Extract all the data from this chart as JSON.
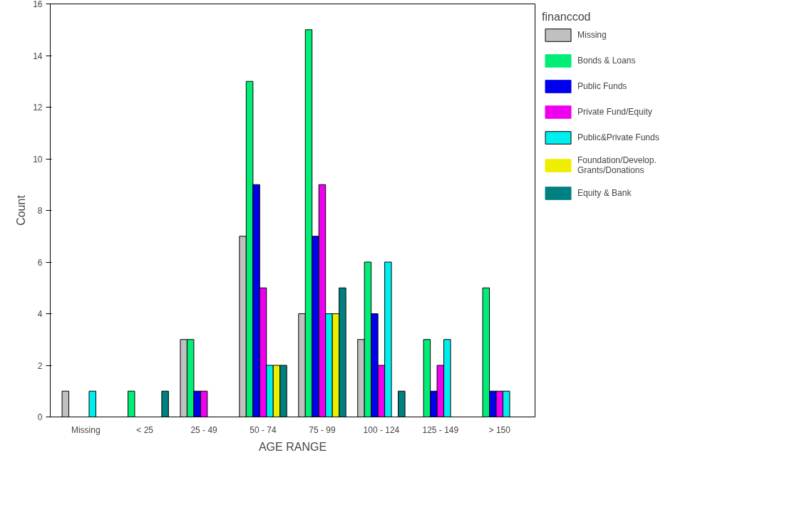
{
  "chart_data": {
    "type": "bar",
    "xlabel": "AGE RANGE",
    "ylabel": "Count",
    "legend_title": "financcod",
    "categories": [
      "Missing",
      "< 25",
      "25 - 49",
      "50 - 74",
      "75 - 99",
      "100 - 124",
      "125 - 149",
      "> 150"
    ],
    "series": [
      {
        "name": "Missing",
        "color": "#c0c0c0",
        "values": [
          1,
          0,
          3,
          7,
          4,
          3,
          0,
          0
        ]
      },
      {
        "name": "Bonds & Loans",
        "color": "#00ee76",
        "values": [
          0,
          1,
          3,
          13,
          15,
          6,
          3,
          5
        ]
      },
      {
        "name": "Public Funds",
        "color": "#0000ee",
        "values": [
          0,
          0,
          1,
          9,
          7,
          4,
          1,
          1
        ]
      },
      {
        "name": "Private Fund/Equity",
        "color": "#ee00ee",
        "values": [
          0,
          0,
          1,
          5,
          9,
          2,
          2,
          1
        ]
      },
      {
        "name": "Public&Private Funds",
        "color": "#00eeee",
        "values": [
          1,
          0,
          0,
          2,
          4,
          6,
          3,
          1
        ]
      },
      {
        "name": "Foundation/Develop. Grants/Donations",
        "color": "#eeee00",
        "values": [
          0,
          0,
          0,
          2,
          4,
          0,
          0,
          0
        ]
      },
      {
        "name": "Equity & Bank",
        "color": "#008080",
        "values": [
          0,
          1,
          0,
          2,
          5,
          1,
          0,
          0
        ]
      }
    ],
    "ylim": [
      0,
      16
    ],
    "yticks": [
      0,
      2,
      4,
      6,
      8,
      10,
      12,
      14,
      16
    ],
    "grid": false,
    "legend": "right"
  }
}
